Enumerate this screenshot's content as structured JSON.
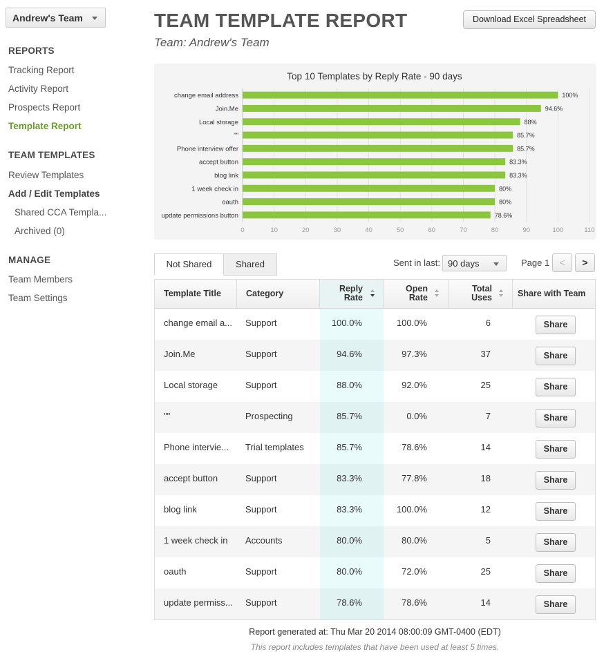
{
  "team_selector": {
    "label": "Andrew's Team"
  },
  "sidebar": {
    "reports_heading": "REPORTS",
    "reports": [
      "Tracking Report",
      "Activity Report",
      "Prospects Report",
      "Template Report"
    ],
    "templates_heading": "TEAM TEMPLATES",
    "templates": [
      "Review Templates",
      "Add / Edit Templates"
    ],
    "template_folders": [
      "Shared CCA Templa...",
      "Archived (0)"
    ],
    "manage_heading": "MANAGE",
    "manage": [
      "Team Members",
      "Team Settings"
    ]
  },
  "header": {
    "title": "TEAM TEMPLATE REPORT",
    "subtitle": "Team: Andrew's Team",
    "download_label": "Download Excel Spreadsheet"
  },
  "chart_data": {
    "type": "bar",
    "orientation": "horizontal",
    "title": "Top 10 Templates by Reply Rate - 90 days",
    "categories": [
      "change email address",
      "Join.Me",
      "Local storage",
      "\"\"",
      "Phone interview offer",
      "accept button",
      "blog link",
      "1 week check in",
      "oauth",
      "update permissions button"
    ],
    "values": [
      100,
      94.6,
      88,
      85.7,
      85.7,
      83.3,
      83.3,
      80,
      80,
      78.6
    ],
    "value_labels": [
      "100%",
      "94.6%",
      "88%",
      "85.7%",
      "85.7%",
      "83.3%",
      "83.3%",
      "80%",
      "80%",
      "78.6%"
    ],
    "xlim": [
      0,
      110
    ],
    "xticks": [
      "0",
      "10",
      "20",
      "30",
      "40",
      "50",
      "60",
      "70",
      "80",
      "90",
      "100",
      "110"
    ],
    "grid": true,
    "bar_color": "#8cc63f"
  },
  "tabs": [
    "Not Shared",
    "Shared"
  ],
  "filter": {
    "label": "Sent in last:",
    "value": "90 days"
  },
  "pagination": {
    "label": "Page 1",
    "prev": "<",
    "next": ">"
  },
  "table": {
    "headers": {
      "title": "Template Title",
      "category": "Category",
      "reply_line1": "Reply",
      "reply_line2": "Rate",
      "open_line1": "Open",
      "open_line2": "Rate",
      "uses_line1": "Total",
      "uses_line2": "Uses",
      "share": "Share with Team"
    },
    "rows": [
      {
        "title": "change email a...",
        "category": "Support",
        "reply": "100.0%",
        "open": "100.0%",
        "uses": "6",
        "share": "Share"
      },
      {
        "title": "Join.Me",
        "category": "Support",
        "reply": "94.6%",
        "open": "97.3%",
        "uses": "37",
        "share": "Share"
      },
      {
        "title": "Local storage",
        "category": "Support",
        "reply": "88.0%",
        "open": "92.0%",
        "uses": "25",
        "share": "Share"
      },
      {
        "title": "\"\"",
        "category": "Prospecting",
        "reply": "85.7%",
        "open": "0.0%",
        "uses": "7",
        "share": "Share"
      },
      {
        "title": "Phone intervie...",
        "category": "Trial templates",
        "reply": "85.7%",
        "open": "78.6%",
        "uses": "14",
        "share": "Share"
      },
      {
        "title": "accept button",
        "category": "Support",
        "reply": "83.3%",
        "open": "77.8%",
        "uses": "18",
        "share": "Share"
      },
      {
        "title": "blog link",
        "category": "Support",
        "reply": "83.3%",
        "open": "100.0%",
        "uses": "12",
        "share": "Share"
      },
      {
        "title": "1 week check in",
        "category": "Accounts",
        "reply": "80.0%",
        "open": "80.0%",
        "uses": "5",
        "share": "Share"
      },
      {
        "title": "oauth",
        "category": "Support",
        "reply": "80.0%",
        "open": "72.0%",
        "uses": "25",
        "share": "Share"
      },
      {
        "title": "update permiss...",
        "category": "Support",
        "reply": "78.6%",
        "open": "78.6%",
        "uses": "14",
        "share": "Share"
      }
    ]
  },
  "footer": {
    "generated": "Report generated at: Thu Mar 20 2014 08:00:09 GMT-0400 (EDT)",
    "note": "This report includes templates that have been used at least 5 times."
  }
}
